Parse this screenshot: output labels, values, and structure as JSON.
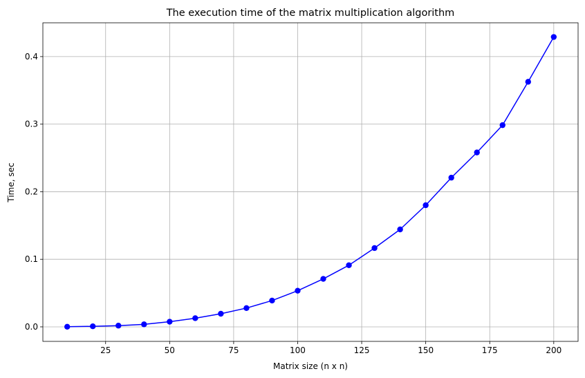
{
  "chart_data": {
    "type": "line",
    "title": "The execution time of the matrix multiplication algorithm",
    "xlabel": "Matrix size (n x n)",
    "ylabel": "Time, sec",
    "x": [
      10,
      20,
      30,
      40,
      50,
      60,
      70,
      80,
      90,
      100,
      110,
      120,
      130,
      140,
      150,
      160,
      170,
      180,
      190,
      200
    ],
    "series": [
      {
        "values": [
          0.0002,
          0.0008,
          0.0018,
          0.0037,
          0.0076,
          0.0128,
          0.0194,
          0.0278,
          0.0389,
          0.0535,
          0.071,
          0.0912,
          0.1166,
          0.1442,
          0.18,
          0.2208,
          0.2581,
          0.2985,
          0.3627,
          0.429
        ],
        "color": "#0000ff",
        "marker": "circle"
      }
    ],
    "xlim": [
      0.5,
      209.5
    ],
    "ylim": [
      -0.0215,
      0.45
    ],
    "xticks": [
      25,
      50,
      75,
      100,
      125,
      150,
      175,
      200
    ],
    "xtick_labels": [
      "25",
      "50",
      "75",
      "100",
      "125",
      "150",
      "175",
      "200"
    ],
    "yticks": [
      0.0,
      0.1,
      0.2,
      0.3,
      0.4
    ],
    "ytick_labels": [
      "0.0",
      "0.1",
      "0.2",
      "0.3",
      "0.4"
    ],
    "grid": true
  }
}
